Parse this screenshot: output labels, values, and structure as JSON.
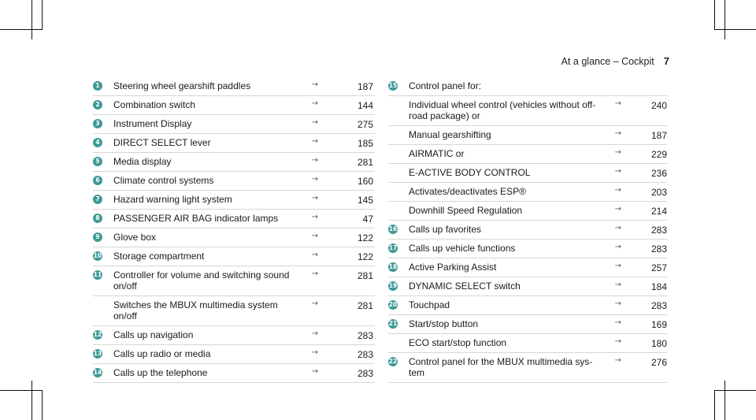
{
  "header": {
    "section": "At a glance – Cockpit",
    "page": "7"
  },
  "arrow_glyph": "→",
  "left_items": [
    {
      "n": "1",
      "label": "Steering wheel gearshift paddles",
      "page": "187"
    },
    {
      "n": "2",
      "label": "Combination switch",
      "page": "144"
    },
    {
      "n": "3",
      "label": "Instrument Display",
      "page": "275"
    },
    {
      "n": "4",
      "label": "DIRECT SELECT lever",
      "page": "185"
    },
    {
      "n": "5",
      "label": "Media display",
      "page": "281"
    },
    {
      "n": "6",
      "label": "Climate control systems",
      "page": "160"
    },
    {
      "n": "7",
      "label": "Hazard warning light system",
      "page": "145"
    },
    {
      "n": "8",
      "label": "PASSENGER AIR BAG indicator lamps",
      "page": "47"
    },
    {
      "n": "9",
      "label": "Glove box",
      "page": "122"
    },
    {
      "n": "10",
      "label": "Storage compartment",
      "page": "122"
    },
    {
      "n": "11",
      "label": "Controller for volume and switching sound\non/off",
      "page": "281"
    },
    {
      "n": "",
      "label": "Switches the MBUX multimedia system\non/off",
      "page": "281"
    },
    {
      "n": "12",
      "label": "Calls up navigation",
      "page": "283"
    },
    {
      "n": "13",
      "label": "Calls up radio or media",
      "page": "283"
    },
    {
      "n": "14",
      "label": "Calls up the telephone",
      "page": "283"
    }
  ],
  "right_items": [
    {
      "n": "15",
      "label": "Control panel for:",
      "page": ""
    },
    {
      "n": "",
      "label": "Individual wheel control (vehicles without off-\nroad package) or",
      "page": "240"
    },
    {
      "n": "",
      "label": "Manual gearshifting",
      "page": "187"
    },
    {
      "n": "",
      "label": "AIRMATIC or",
      "page": "229"
    },
    {
      "n": "",
      "label": "E-ACTIVE BODY CONTROL",
      "page": "236"
    },
    {
      "n": "",
      "label": "Activates/deactivates ESP®",
      "page": "203"
    },
    {
      "n": "",
      "label": "Downhill Speed Regulation",
      "page": "214"
    },
    {
      "n": "16",
      "label": "Calls up favorites",
      "page": "283"
    },
    {
      "n": "17",
      "label": "Calls up vehicle functions",
      "page": "283"
    },
    {
      "n": "18",
      "label": "Active Parking Assist",
      "page": "257"
    },
    {
      "n": "19",
      "label": "DYNAMIC SELECT switch",
      "page": "184"
    },
    {
      "n": "20",
      "label": "Touchpad",
      "page": "283"
    },
    {
      "n": "21",
      "label": "Start/stop button",
      "page": "169"
    },
    {
      "n": "",
      "label": "ECO start/stop function",
      "page": "180"
    },
    {
      "n": "22",
      "label": "Control panel for the MBUX multimedia sys-\ntem",
      "page": "276"
    }
  ]
}
